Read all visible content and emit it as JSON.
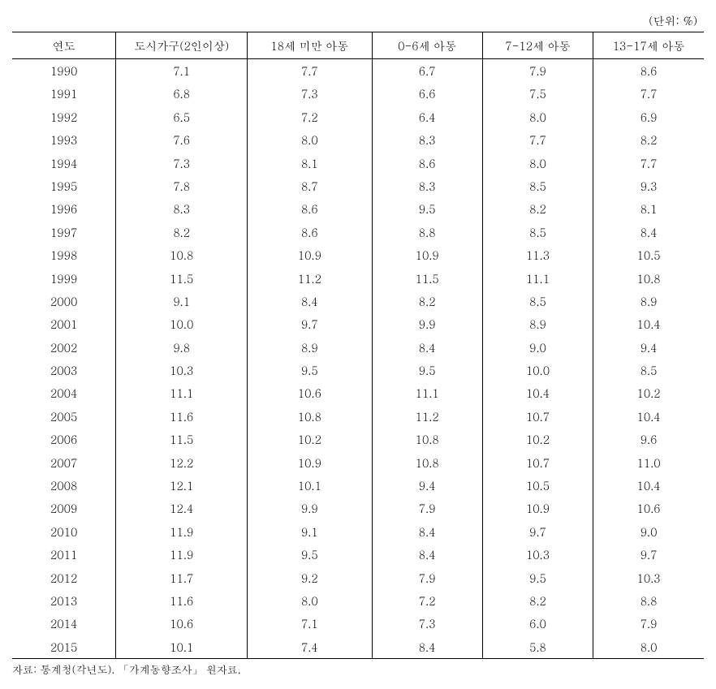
{
  "unit_label": "(단위: %)",
  "table": {
    "columns": [
      "연도",
      "도시가구(2인이상)",
      "18세 미만 아동",
      "0-6세 아동",
      "7-12세 아동",
      "13-17세 아동"
    ],
    "rows": [
      [
        "1990",
        "7.1",
        "7.7",
        "6.7",
        "7.9",
        "8.6"
      ],
      [
        "1991",
        "6.8",
        "7.3",
        "6.6",
        "7.5",
        "7.7"
      ],
      [
        "1992",
        "6.5",
        "7.2",
        "6.4",
        "8.0",
        "6.9"
      ],
      [
        "1993",
        "7.6",
        "8.0",
        "8.3",
        "7.7",
        "8.2"
      ],
      [
        "1994",
        "7.3",
        "8.1",
        "8.6",
        "8.0",
        "7.7"
      ],
      [
        "1995",
        "7.8",
        "8.7",
        "8.3",
        "8.5",
        "9.3"
      ],
      [
        "1996",
        "8.3",
        "8.6",
        "9.5",
        "8.2",
        "8.1"
      ],
      [
        "1997",
        "8.2",
        "8.6",
        "8.8",
        "8.5",
        "8.4"
      ],
      [
        "1998",
        "10.8",
        "10.9",
        "10.9",
        "11.3",
        "10.5"
      ],
      [
        "1999",
        "11.5",
        "11.2",
        "11.5",
        "11.1",
        "10.8"
      ],
      [
        "2000",
        "9.1",
        "8.4",
        "8.2",
        "8.5",
        "8.9"
      ],
      [
        "2001",
        "10.0",
        "9.7",
        "9.9",
        "8.9",
        "10.4"
      ],
      [
        "2002",
        "9.8",
        "8.9",
        "8.4",
        "9.0",
        "9.4"
      ],
      [
        "2003",
        "10.3",
        "9.5",
        "9.5",
        "10.0",
        "8.5"
      ],
      [
        "2004",
        "11.1",
        "10.6",
        "11.1",
        "10.4",
        "10.2"
      ],
      [
        "2005",
        "11.6",
        "10.8",
        "11.2",
        "10.7",
        "10.4"
      ],
      [
        "2006",
        "11.5",
        "10.2",
        "10.8",
        "10.2",
        "9.6"
      ],
      [
        "2007",
        "12.2",
        "10.9",
        "10.8",
        "10.7",
        "11.0"
      ],
      [
        "2008",
        "12.1",
        "10.1",
        "9.4",
        "10.5",
        "10.4"
      ],
      [
        "2009",
        "12.4",
        "9.9",
        "7.9",
        "10.9",
        "10.6"
      ],
      [
        "2010",
        "11.9",
        "9.1",
        "8.4",
        "9.7",
        "9.0"
      ],
      [
        "2011",
        "11.9",
        "9.5",
        "8.4",
        "10.3",
        "9.7"
      ],
      [
        "2012",
        "11.7",
        "9.2",
        "7.9",
        "9.5",
        "10.3"
      ],
      [
        "2013",
        "11.6",
        "8.0",
        "7.2",
        "8.2",
        "8.8"
      ],
      [
        "2014",
        "10.6",
        "7.1",
        "7.3",
        "6.0",
        "7.9"
      ],
      [
        "2015",
        "10.1",
        "7.4",
        "8.4",
        "5.8",
        "8.0"
      ]
    ],
    "column_widths": [
      "15%",
      "19%",
      "18%",
      "16%",
      "16%",
      "16%"
    ]
  },
  "source": "자료: 통계청(각년도). 「가계동향조사」 원자료."
}
